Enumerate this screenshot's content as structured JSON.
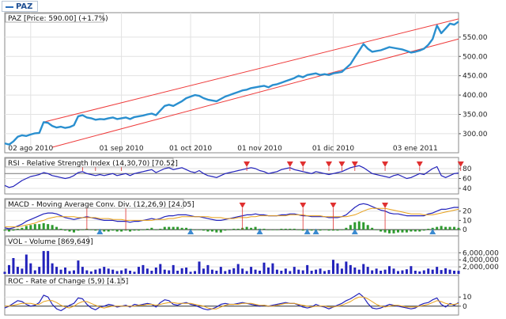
{
  "legend": {
    "label": "PAZ",
    "color": "#2a6ebb"
  },
  "colors": {
    "price": "#2a8fcf",
    "channel": "#ee3b3b",
    "indicator": "#2222bb",
    "signal": "#e8a11a",
    "volume": "#2222bb",
    "histogram": "#2e9a2e",
    "sell_marker": "#e03030",
    "buy_marker": "#3a8ad0"
  },
  "chart_data": [
    {
      "type": "line",
      "panel": "price",
      "title": "PAZ [Price: 590.00] (+1.7%)",
      "yticks": [
        300,
        350,
        400,
        450,
        500,
        550
      ],
      "ytick_labels": [
        "300.00",
        "350.00",
        "400.00",
        "450.00",
        "500.00",
        "550.00"
      ],
      "ylim": [
        265,
        605
      ],
      "xlim": [
        0,
        105
      ],
      "xticks": [
        {
          "x": 6,
          "label": "02 ago 2010"
        },
        {
          "x": 27,
          "label": "01 sep 2010"
        },
        {
          "x": 43,
          "label": "01 oct 2010"
        },
        {
          "x": 59,
          "label": "01 nov 2010"
        },
        {
          "x": 76,
          "label": "01 dic 2010"
        },
        {
          "x": 95,
          "label": "03 ene 2011"
        }
      ],
      "series": [
        {
          "values": [
            275,
            272,
            280,
            292,
            296,
            294,
            298,
            301,
            302,
            330,
            328,
            320,
            316,
            318,
            315,
            317,
            322,
            345,
            348,
            342,
            340,
            336,
            338,
            337,
            340,
            342,
            338,
            340,
            342,
            338,
            343,
            345,
            347,
            350,
            352,
            348,
            360,
            372,
            375,
            372,
            378,
            384,
            392,
            396,
            400,
            398,
            392,
            388,
            386,
            384,
            390,
            396,
            400,
            404,
            408,
            412,
            414,
            418,
            420,
            422,
            424,
            420,
            426,
            428,
            432,
            436,
            440,
            444,
            450,
            446,
            452,
            454,
            456,
            452,
            454,
            452,
            456,
            458,
            460,
            470,
            480,
            498,
            515,
            532,
            520,
            512,
            514,
            516,
            520,
            524,
            522,
            520,
            518,
            514,
            510,
            512,
            515,
            520,
            530,
            545,
            580,
            560,
            572,
            585,
            582,
            590
          ]
        }
      ],
      "trend_lines": [
        {
          "from": [
            9,
            330
          ],
          "to": [
            105,
            597
          ]
        },
        {
          "from": [
            11,
            265
          ],
          "to": [
            105,
            545
          ]
        }
      ]
    },
    {
      "type": "line",
      "panel": "rsi",
      "title": "RSI - Relative Strength Index (14,30,70) [70.52]",
      "yticks": [
        40,
        60,
        80
      ],
      "ytick_labels": [
        "40",
        "60",
        "80"
      ],
      "ylim": [
        32,
        96
      ],
      "xlim": [
        0,
        105
      ],
      "series": [
        {
          "values": [
            46,
            42,
            44,
            50,
            56,
            60,
            64,
            66,
            68,
            72,
            70,
            66,
            64,
            62,
            60,
            62,
            66,
            72,
            74,
            70,
            68,
            66,
            68,
            66,
            68,
            70,
            66,
            68,
            70,
            66,
            70,
            72,
            74,
            76,
            78,
            72,
            76,
            80,
            82,
            78,
            80,
            82,
            78,
            74,
            72,
            76,
            70,
            66,
            64,
            62,
            66,
            70,
            72,
            74,
            76,
            78,
            80,
            82,
            80,
            76,
            74,
            70,
            72,
            74,
            78,
            80,
            82,
            78,
            76,
            74,
            72,
            70,
            74,
            72,
            70,
            68,
            70,
            72,
            74,
            78,
            82,
            84,
            86,
            82,
            76,
            70,
            68,
            66,
            64,
            62,
            66,
            68,
            64,
            60,
            62,
            66,
            70,
            68,
            74,
            80,
            84,
            66,
            62,
            66,
            70,
            71
          ]
        }
      ],
      "markers": [
        {
          "kind": "sell",
          "x": 18
        },
        {
          "kind": "sell",
          "x": 21
        },
        {
          "kind": "sell",
          "x": 27
        },
        {
          "kind": "sell",
          "x": 56
        },
        {
          "kind": "sell",
          "x": 66
        },
        {
          "kind": "sell",
          "x": 69
        },
        {
          "kind": "sell",
          "x": 75
        },
        {
          "kind": "sell",
          "x": 78
        },
        {
          "kind": "sell",
          "x": 81
        },
        {
          "kind": "sell",
          "x": 88
        },
        {
          "kind": "sell",
          "x": 96
        },
        {
          "kind": "sell",
          "x": 106
        }
      ]
    },
    {
      "type": "line",
      "panel": "macd",
      "title": "MACD - Moving Average Conv. Div. (12,26,9) [24.05]",
      "yticks": [
        0,
        10,
        20
      ],
      "ytick_labels": [
        "0",
        "10",
        "20"
      ],
      "ylim": [
        -5,
        30
      ],
      "xlim": [
        0,
        105
      ],
      "series": [
        {
          "name": "macd",
          "values": [
            2,
            1,
            2,
            4,
            6,
            9,
            11,
            13,
            15,
            17,
            18,
            18,
            17,
            15,
            13,
            12,
            11,
            12,
            13,
            14,
            13,
            12,
            11,
            10,
            10,
            10,
            9,
            9,
            9,
            8,
            9,
            9,
            10,
            11,
            12,
            11,
            12,
            14,
            15,
            15,
            16,
            16,
            16,
            15,
            14,
            14,
            13,
            12,
            11,
            10,
            10,
            11,
            12,
            13,
            14,
            15,
            16,
            16,
            17,
            16,
            16,
            15,
            15,
            15,
            16,
            16,
            17,
            17,
            16,
            15,
            15,
            14,
            14,
            14,
            14,
            13,
            13,
            13,
            14,
            16,
            20,
            24,
            27,
            28,
            27,
            25,
            23,
            21,
            20,
            18,
            17,
            17,
            16,
            15,
            15,
            15,
            15,
            15,
            17,
            18,
            20,
            22,
            22,
            23,
            24,
            24
          ]
        },
        {
          "name": "signal",
          "values": [
            3,
            3,
            3,
            3,
            4,
            5,
            6,
            7,
            9,
            10,
            12,
            13,
            14,
            14,
            14,
            14,
            14,
            13,
            13,
            13,
            13,
            13,
            12,
            12,
            12,
            11,
            11,
            11,
            10,
            10,
            10,
            10,
            10,
            10,
            10,
            11,
            11,
            11,
            12,
            12,
            13,
            14,
            14,
            14,
            14,
            14,
            14,
            14,
            13,
            13,
            13,
            12,
            12,
            12,
            13,
            13,
            13,
            14,
            14,
            15,
            15,
            15,
            15,
            15,
            15,
            15,
            16,
            16,
            16,
            16,
            15,
            15,
            15,
            15,
            14,
            14,
            14,
            14,
            14,
            14,
            15,
            16,
            18,
            20,
            22,
            23,
            23,
            23,
            23,
            22,
            21,
            20,
            19,
            18,
            17,
            17,
            17,
            16,
            16,
            16,
            17,
            18,
            19,
            20,
            21,
            22
          ]
        }
      ],
      "histogram": [
        -1,
        -2,
        -1,
        1,
        2,
        4,
        5,
        6,
        6,
        7,
        6,
        5,
        3,
        1,
        -1,
        -2,
        -3,
        -1,
        0,
        1,
        0,
        -1,
        -1,
        -2,
        -2,
        -1,
        -2,
        -2,
        -1,
        -2,
        -1,
        -1,
        0,
        1,
        2,
        0,
        1,
        3,
        3,
        3,
        3,
        2,
        2,
        1,
        0,
        0,
        -1,
        -2,
        -2,
        -3,
        -3,
        -1,
        0,
        1,
        1,
        2,
        3,
        2,
        3,
        1,
        1,
        0,
        0,
        0,
        1,
        1,
        1,
        1,
        0,
        -1,
        0,
        -1,
        -1,
        -1,
        0,
        -1,
        -1,
        -1,
        0,
        2,
        5,
        8,
        9,
        8,
        5,
        2,
        0,
        -2,
        -3,
        -4,
        -4,
        -3,
        -3,
        -3,
        -2,
        -2,
        -2,
        -1,
        1,
        2,
        3,
        4,
        3,
        3,
        3,
        2
      ],
      "markers": [
        {
          "kind": "sell",
          "x": 19
        },
        {
          "kind": "sell",
          "x": 28
        },
        {
          "kind": "sell",
          "x": 55
        },
        {
          "kind": "sell",
          "x": 69
        },
        {
          "kind": "sell",
          "x": 76
        },
        {
          "kind": "sell",
          "x": 88
        },
        {
          "kind": "buy",
          "x": 22
        },
        {
          "kind": "buy",
          "x": 43
        },
        {
          "kind": "buy",
          "x": 59
        },
        {
          "kind": "buy",
          "x": 70
        },
        {
          "kind": "buy",
          "x": 72
        },
        {
          "kind": "buy",
          "x": 81
        },
        {
          "kind": "buy",
          "x": 99
        }
      ]
    },
    {
      "type": "bar",
      "panel": "volume",
      "title": "VOL - Volume [869,649]",
      "yticks": [
        2000000,
        4000000,
        6000000
      ],
      "ytick_labels": [
        "2,000,000",
        "4,000,000",
        "6,000,000"
      ],
      "ylim": [
        0,
        7200000
      ],
      "xlim": [
        0,
        105
      ],
      "values": [
        600000,
        2500000,
        4500000,
        2000000,
        1500000,
        5500000,
        3000000,
        1000000,
        2000000,
        6500000,
        6500000,
        3000000,
        2000000,
        1200000,
        1800000,
        800000,
        1000000,
        3800000,
        2000000,
        1000000,
        700000,
        1200000,
        1500000,
        2000000,
        1500000,
        1200000,
        800000,
        1000000,
        1500000,
        900000,
        600000,
        2000000,
        2500000,
        1500000,
        900000,
        1800000,
        2800000,
        1200000,
        1000000,
        2500000,
        900000,
        1600000,
        1800000,
        600000,
        800000,
        3500000,
        1500000,
        2500000,
        1200000,
        900000,
        2000000,
        800000,
        1200000,
        1600000,
        2800000,
        1500000,
        800000,
        2000000,
        1200000,
        900000,
        3200000,
        1800000,
        3000000,
        1200000,
        900000,
        1500000,
        800000,
        2000000,
        1200000,
        1000000,
        2500000,
        900000,
        1200000,
        1500000,
        800000,
        1100000,
        4000000,
        3000000,
        1500000,
        3500000,
        2500000,
        1800000,
        1200000,
        2800000,
        2000000,
        1000000,
        1500000,
        900000,
        1200000,
        2200000,
        1500000,
        800000,
        1000000,
        1300000,
        2200000,
        900000,
        700000,
        1000000,
        1500000,
        1200000,
        2000000,
        1100000,
        1600000,
        1200000,
        900000,
        869649
      ]
    },
    {
      "type": "line",
      "panel": "roc",
      "title": "ROC - Rate of Change (5,9) [4.15]",
      "yticks": [
        0,
        10
      ],
      "ytick_labels": [
        "0",
        "10"
      ],
      "ylim": [
        -8,
        18
      ],
      "xlim": [
        0,
        105
      ],
      "series": [
        {
          "name": "roc",
          "values": [
            -2,
            0,
            3,
            6,
            5,
            2,
            0,
            1,
            4,
            12,
            10,
            2,
            -3,
            -5,
            -2,
            1,
            3,
            9,
            8,
            2,
            -2,
            -4,
            -1,
            0,
            2,
            1,
            -1,
            0,
            1,
            -1,
            2,
            1,
            2,
            3,
            2,
            -1,
            4,
            7,
            6,
            2,
            1,
            3,
            4,
            2,
            1,
            -1,
            -3,
            -4,
            -3,
            -1,
            2,
            3,
            2,
            2,
            3,
            4,
            3,
            2,
            1,
            0,
            1,
            0,
            1,
            2,
            3,
            4,
            3,
            3,
            1,
            -1,
            -2,
            -1,
            2,
            0,
            -1,
            -3,
            -1,
            1,
            3,
            6,
            8,
            11,
            14,
            10,
            3,
            -2,
            -3,
            -2,
            0,
            2,
            1,
            0,
            -1,
            -2,
            -3,
            -2,
            1,
            3,
            4,
            7,
            9,
            2,
            -1,
            3,
            1,
            4
          ]
        },
        {
          "name": "signal",
          "values": [
            0,
            0,
            1,
            2,
            3,
            3,
            3,
            2,
            2,
            5,
            6,
            6,
            4,
            1,
            -1,
            -2,
            0,
            3,
            5,
            5,
            3,
            1,
            -1,
            -2,
            -1,
            0,
            0,
            0,
            0,
            0,
            0,
            1,
            1,
            2,
            2,
            1,
            2,
            3,
            4,
            4,
            3,
            3,
            3,
            3,
            2,
            1,
            0,
            -2,
            -3,
            -3,
            -1,
            1,
            2,
            2,
            2,
            3,
            3,
            3,
            2,
            1,
            1,
            0,
            0,
            1,
            2,
            3,
            3,
            3,
            2,
            1,
            0,
            -1,
            0,
            0,
            0,
            -1,
            -1,
            0,
            1,
            3,
            5,
            8,
            10,
            10,
            8,
            5,
            2,
            0,
            -1,
            0,
            1,
            1,
            0,
            -1,
            -1,
            -1,
            0,
            1,
            2,
            4,
            6,
            5,
            3,
            2,
            2,
            3
          ]
        }
      ]
    }
  ]
}
